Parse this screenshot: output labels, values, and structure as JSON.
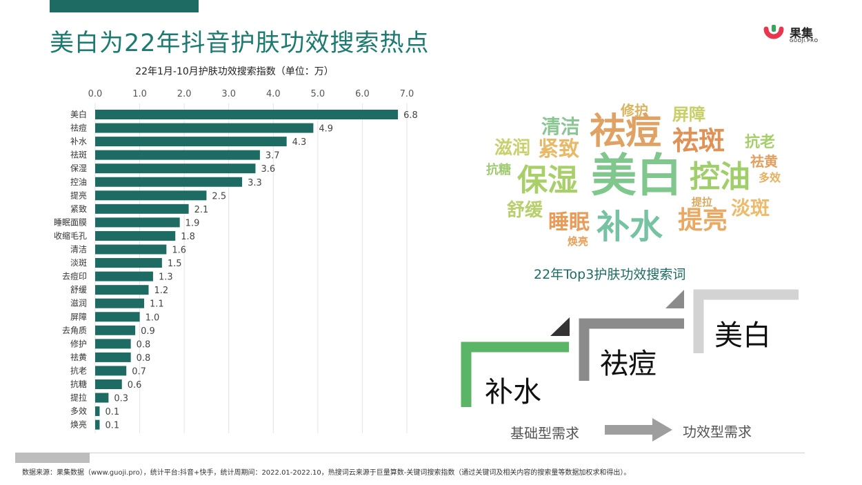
{
  "page": {
    "title": "美白为22年抖音护肤功效搜索热点",
    "accent_color": "#1d6b63"
  },
  "logo": {
    "name": "果集",
    "sub": "GUOJI.PRO",
    "mark_color": "#e8364f"
  },
  "chart_data": {
    "type": "bar",
    "orientation": "horizontal",
    "title": "22年1月-10月护肤功效搜索指数（单位：万）",
    "categories": [
      "美白",
      "祛痘",
      "补水",
      "祛斑",
      "保湿",
      "控油",
      "提亮",
      "紧致",
      "睡眠面膜",
      "收缩毛孔",
      "清洁",
      "淡斑",
      "去痘印",
      "舒缓",
      "滋润",
      "屏障",
      "去角质",
      "修护",
      "祛黄",
      "抗老",
      "抗糖",
      "提拉",
      "多效",
      "焕亮"
    ],
    "values": [
      6.8,
      4.9,
      4.3,
      3.7,
      3.6,
      3.3,
      2.5,
      2.1,
      1.9,
      1.8,
      1.6,
      1.5,
      1.3,
      1.2,
      1.1,
      1.0,
      0.9,
      0.8,
      0.8,
      0.7,
      0.6,
      0.3,
      0.1,
      0.1
    ],
    "value_labels": [
      "6.8",
      "4.9",
      "4.3",
      "3.7",
      "3.6",
      "3.3",
      "2.5",
      "2.1",
      "1.9",
      "1.8",
      "1.6",
      "1.5",
      "1.3",
      "1.2",
      "1.1",
      "1.0",
      "0.9",
      "0.8",
      "0.8",
      "0.7",
      "0.6",
      "0.3",
      "0.1",
      "0.1"
    ],
    "xlim": [
      0,
      7
    ],
    "ticks": [
      "0.0",
      "1.0",
      "2.0",
      "3.0",
      "4.0",
      "5.0",
      "6.0",
      "7.0"
    ],
    "bar_color": "#1d6b63",
    "grid": true,
    "axis_position": "top"
  },
  "wordcloud": {
    "caption": "22年Top3护肤功效搜索词",
    "words": [
      {
        "text": "美白",
        "color": "#7fc78d"
      },
      {
        "text": "祛痘",
        "color": "#e0a262"
      },
      {
        "text": "补水",
        "color": "#78c2a4"
      },
      {
        "text": "保湿",
        "color": "#a9cf68"
      },
      {
        "text": "控油",
        "color": "#9fce6a"
      },
      {
        "text": "祛斑",
        "color": "#e09256"
      },
      {
        "text": "提亮",
        "color": "#e9a963"
      },
      {
        "text": "睡眠",
        "color": "#ea9b5a"
      },
      {
        "text": "紧致",
        "color": "#e8b968"
      },
      {
        "text": "清洁",
        "color": "#89c692"
      },
      {
        "text": "淡斑",
        "color": "#ecbb6b"
      },
      {
        "text": "滋润",
        "color": "#c9d06e"
      },
      {
        "text": "舒缓",
        "color": "#b8cf6d"
      },
      {
        "text": "修护",
        "color": "#d9b45f"
      },
      {
        "text": "屏障",
        "color": "#c7cf66"
      },
      {
        "text": "抗老",
        "color": "#a6cf6b"
      },
      {
        "text": "祛黄",
        "color": "#e2a060"
      },
      {
        "text": "多效",
        "color": "#e6b160"
      },
      {
        "text": "抗糖",
        "color": "#a0cb73"
      },
      {
        "text": "提拉",
        "color": "#d7a95f"
      },
      {
        "text": "焕亮",
        "color": "#e7a15c"
      }
    ]
  },
  "top3": {
    "steps": [
      {
        "label": "补水",
        "color": "#5bb567"
      },
      {
        "label": "祛痘",
        "color": "#8b8b8b"
      },
      {
        "label": "美白",
        "color": "#d3d3d3"
      }
    ],
    "flow_from": "基础型需求",
    "flow_to": "功效型需求",
    "arrow_color": "#9e9e9e"
  },
  "footer": {
    "source": "数据来源：果集数据（www.guoji.pro），统计平台:抖音+快手，统计周期间：2022.01-2022.10，热搜词云来源于巨量算数-关键词搜索指数（通过关键词及相关内容的搜索量等数据加权求和得出）。"
  }
}
